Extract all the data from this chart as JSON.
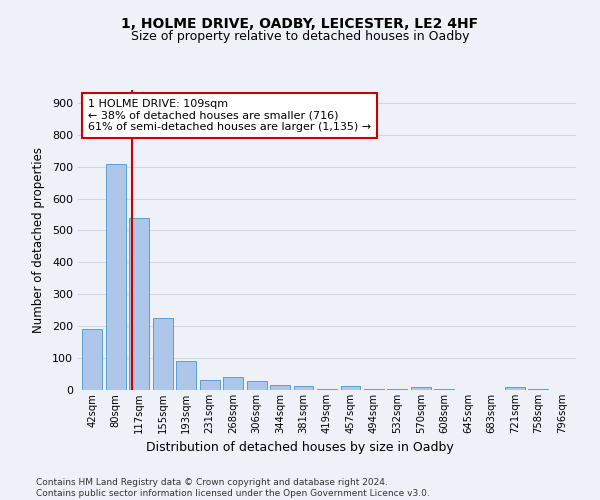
{
  "title1": "1, HOLME DRIVE, OADBY, LEICESTER, LE2 4HF",
  "title2": "Size of property relative to detached houses in Oadby",
  "xlabel": "Distribution of detached houses by size in Oadby",
  "ylabel": "Number of detached properties",
  "categories": [
    "42sqm",
    "80sqm",
    "117sqm",
    "155sqm",
    "193sqm",
    "231sqm",
    "268sqm",
    "306sqm",
    "344sqm",
    "381sqm",
    "419sqm",
    "457sqm",
    "494sqm",
    "532sqm",
    "570sqm",
    "608sqm",
    "645sqm",
    "683sqm",
    "721sqm",
    "758sqm",
    "796sqm"
  ],
  "values": [
    190,
    707,
    540,
    225,
    92,
    32,
    40,
    27,
    17,
    12,
    2,
    12,
    2,
    2,
    8,
    2,
    0,
    0,
    10,
    2,
    0
  ],
  "bar_color": "#aec6e8",
  "bar_edge_color": "#5a9fd4",
  "grid_color": "#d0d8e8",
  "background_color": "#eef2f8",
  "vline_x": 1.72,
  "vline_color": "#cc0000",
  "annotation_text": "1 HOLME DRIVE: 109sqm\n← 38% of detached houses are smaller (716)\n61% of semi-detached houses are larger (1,135) →",
  "annotation_box_color": "#ffffff",
  "annotation_box_edge": "#cc0000",
  "ylim": [
    0,
    940
  ],
  "yticks": [
    0,
    100,
    200,
    300,
    400,
    500,
    600,
    700,
    800,
    900
  ],
  "footer": "Contains HM Land Registry data © Crown copyright and database right 2024.\nContains public sector information licensed under the Open Government Licence v3.0."
}
